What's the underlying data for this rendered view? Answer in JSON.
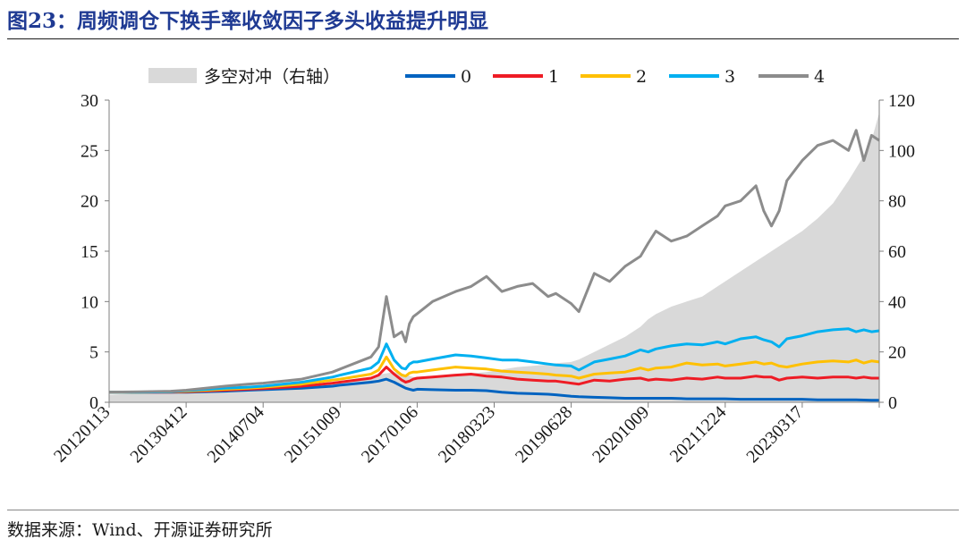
{
  "page": {
    "title": "图23：周频调仓下换手率收敛因子多头收益提升明显",
    "source": "数据来源：Wind、开源证券研究所"
  },
  "chart_data": {
    "type": "line",
    "title": "图23：周频调仓下换手率收敛因子多头收益提升明显",
    "x_tick_labels": [
      "20120113",
      "20130412",
      "20140704",
      "20151009",
      "20170106",
      "20180323",
      "20190628",
      "20201009",
      "20211224",
      "20230317"
    ],
    "y_left": {
      "range": [
        0,
        30
      ],
      "ticks": [
        0,
        5,
        10,
        15,
        20,
        25,
        30
      ]
    },
    "y_right": {
      "range": [
        0,
        120
      ],
      "ticks": [
        0,
        20,
        40,
        60,
        80,
        100,
        120
      ]
    },
    "grid": false,
    "legend_position": "top",
    "x": [
      0,
      0.04,
      0.08,
      0.1,
      0.15,
      0.18,
      0.2,
      0.25,
      0.29,
      0.3,
      0.34,
      0.35,
      0.36,
      0.37,
      0.38,
      0.385,
      0.39,
      0.395,
      0.4,
      0.42,
      0.45,
      0.47,
      0.49,
      0.51,
      0.53,
      0.55,
      0.57,
      0.58,
      0.6,
      0.61,
      0.63,
      0.65,
      0.67,
      0.69,
      0.7,
      0.71,
      0.73,
      0.75,
      0.77,
      0.79,
      0.8,
      0.82,
      0.84,
      0.85,
      0.86,
      0.87,
      0.88,
      0.9,
      0.92,
      0.94,
      0.96,
      0.97,
      0.98,
      0.99,
      1.0
    ],
    "series": [
      {
        "name": "多空对冲（右轴）",
        "axis": "right",
        "kind": "area",
        "color": "#d9d9d9",
        "values": [
          3,
          3.5,
          4,
          4.5,
          5,
          6,
          6.5,
          7,
          8,
          8.5,
          10,
          11,
          11.5,
          12,
          11.5,
          11,
          10.5,
          10,
          10,
          10.5,
          11,
          11.5,
          12,
          13,
          14,
          14.5,
          15,
          15.5,
          16,
          17,
          20,
          23,
          26,
          30,
          33,
          35,
          38,
          40,
          42,
          46,
          48,
          52,
          56,
          58,
          60,
          62,
          64,
          68,
          73,
          79,
          88,
          93,
          98,
          104,
          115
        ]
      },
      {
        "name": "0",
        "axis": "left",
        "kind": "line",
        "color": "#0063c0",
        "values": [
          1.0,
          1.0,
          1.0,
          1.0,
          1.1,
          1.2,
          1.25,
          1.4,
          1.6,
          1.7,
          2.0,
          2.1,
          2.3,
          2.0,
          1.6,
          1.4,
          1.3,
          1.2,
          1.3,
          1.25,
          1.2,
          1.2,
          1.15,
          1.0,
          0.9,
          0.85,
          0.8,
          0.75,
          0.6,
          0.55,
          0.5,
          0.45,
          0.4,
          0.4,
          0.4,
          0.4,
          0.4,
          0.35,
          0.35,
          0.35,
          0.35,
          0.3,
          0.3,
          0.3,
          0.3,
          0.3,
          0.3,
          0.3,
          0.25,
          0.25,
          0.25,
          0.25,
          0.22,
          0.2,
          0.2
        ]
      },
      {
        "name": "1",
        "axis": "left",
        "kind": "line",
        "color": "#ee1c25",
        "values": [
          1.0,
          1.0,
          1.0,
          1.05,
          1.2,
          1.3,
          1.35,
          1.6,
          1.9,
          2.0,
          2.4,
          2.7,
          3.5,
          2.8,
          2.2,
          2.0,
          2.1,
          2.3,
          2.4,
          2.5,
          2.7,
          2.8,
          2.6,
          2.5,
          2.3,
          2.2,
          2.1,
          2.1,
          1.9,
          1.8,
          2.2,
          2.1,
          2.3,
          2.4,
          2.2,
          2.3,
          2.2,
          2.4,
          2.3,
          2.5,
          2.4,
          2.4,
          2.6,
          2.5,
          2.5,
          2.2,
          2.4,
          2.5,
          2.4,
          2.5,
          2.5,
          2.4,
          2.5,
          2.4,
          2.4
        ]
      },
      {
        "name": "2",
        "axis": "left",
        "kind": "line",
        "color": "#ffc000",
        "values": [
          1.0,
          1.0,
          1.05,
          1.1,
          1.3,
          1.4,
          1.5,
          1.8,
          2.2,
          2.3,
          2.8,
          3.2,
          4.5,
          3.3,
          2.7,
          2.6,
          2.9,
          3.0,
          3.0,
          3.2,
          3.5,
          3.4,
          3.3,
          3.1,
          3.0,
          2.9,
          2.8,
          2.7,
          2.6,
          2.4,
          2.8,
          2.9,
          3.0,
          3.4,
          3.2,
          3.4,
          3.5,
          3.9,
          3.7,
          3.8,
          3.6,
          3.8,
          4.0,
          3.8,
          3.9,
          3.6,
          3.5,
          3.8,
          4.0,
          4.1,
          4.0,
          4.2,
          3.9,
          4.1,
          4.0
        ]
      },
      {
        "name": "3",
        "axis": "left",
        "kind": "line",
        "color": "#00b0f0",
        "values": [
          1.0,
          1.0,
          1.05,
          1.15,
          1.4,
          1.5,
          1.6,
          2.0,
          2.5,
          2.7,
          3.4,
          4.0,
          5.8,
          4.2,
          3.4,
          3.3,
          3.8,
          4.0,
          4.0,
          4.3,
          4.7,
          4.6,
          4.4,
          4.2,
          4.2,
          4.0,
          3.8,
          3.7,
          3.6,
          3.2,
          4.0,
          4.3,
          4.6,
          5.2,
          5.0,
          5.3,
          5.6,
          5.8,
          5.7,
          6.0,
          5.8,
          6.3,
          6.5,
          6.2,
          6.0,
          5.5,
          6.3,
          6.6,
          7.0,
          7.2,
          7.3,
          7.0,
          7.2,
          7.0,
          7.1
        ]
      },
      {
        "name": "4",
        "axis": "left",
        "kind": "line",
        "color": "#8c8c8c",
        "values": [
          1.0,
          1.05,
          1.1,
          1.2,
          1.6,
          1.8,
          1.9,
          2.3,
          3.0,
          3.3,
          4.5,
          5.5,
          10.5,
          6.5,
          7.0,
          6.0,
          7.8,
          8.5,
          8.8,
          10.0,
          11.0,
          11.5,
          12.5,
          11.0,
          11.5,
          11.8,
          10.5,
          10.8,
          9.8,
          9.0,
          12.8,
          12.0,
          13.5,
          14.5,
          15.8,
          17.0,
          16.0,
          16.5,
          17.5,
          18.5,
          19.5,
          20.0,
          21.5,
          19.0,
          17.5,
          19.0,
          22.0,
          24.0,
          25.5,
          26.0,
          25.0,
          27.0,
          24.0,
          26.5,
          26.0
        ]
      }
    ]
  }
}
